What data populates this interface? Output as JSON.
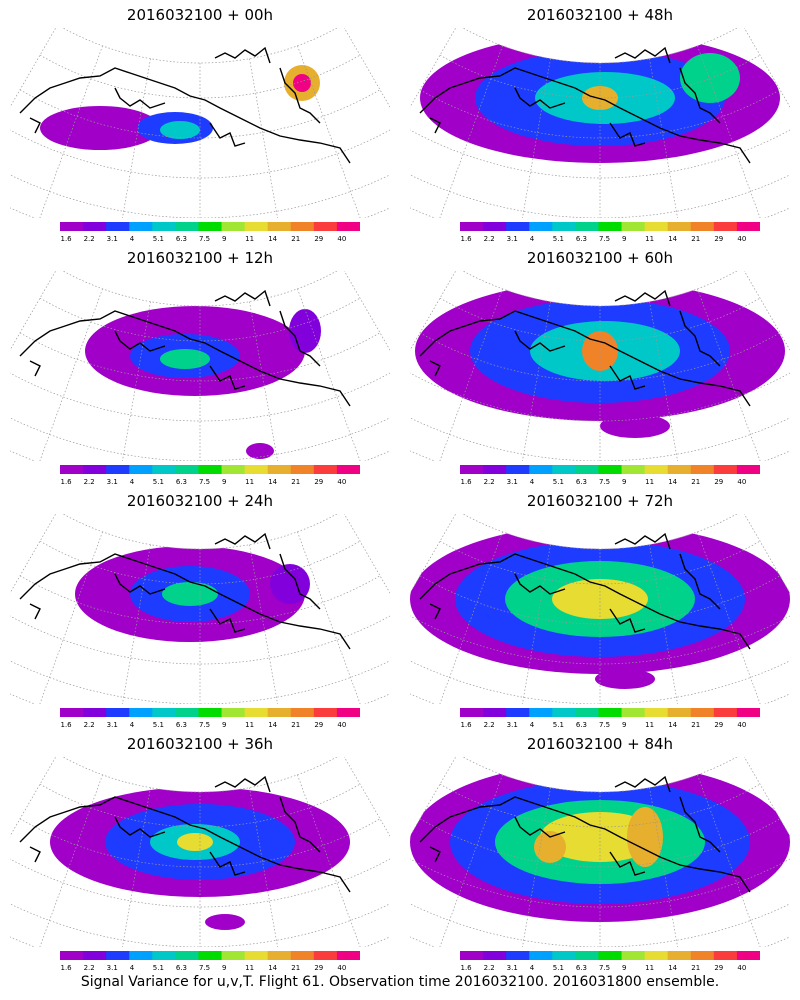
{
  "panels": [
    {
      "title": "2016032100 + 00h",
      "lead_hours": 0
    },
    {
      "title": "2016032100 + 48h",
      "lead_hours": 48
    },
    {
      "title": "2016032100 + 12h",
      "lead_hours": 12
    },
    {
      "title": "2016032100 + 60h",
      "lead_hours": 60
    },
    {
      "title": "2016032100 + 24h",
      "lead_hours": 24
    },
    {
      "title": "2016032100 + 72h",
      "lead_hours": 72
    },
    {
      "title": "2016032100 + 36h",
      "lead_hours": 36
    },
    {
      "title": "2016032100 + 84h",
      "lead_hours": 84
    }
  ],
  "colorbar": {
    "labels": [
      "1.6",
      "2.2",
      "3.1",
      "4",
      "5.1",
      "6.3",
      "7.5",
      "9",
      "11",
      "14",
      "21",
      "29",
      "40"
    ],
    "colors": [
      "#a000c8",
      "#8200dc",
      "#1e3cff",
      "#00a0ff",
      "#00c8c8",
      "#00d28c",
      "#00dc00",
      "#a0e632",
      "#e6dc32",
      "#e6af2d",
      "#f08228",
      "#fa3c3c",
      "#f00082"
    ]
  },
  "footer": "Signal Variance for u,v,T. Flight 61. Observation time 2016032100. 2016031800 ensemble.",
  "colors": {
    "coastline": "#000000",
    "grid": "#999999",
    "background": "#ffffff"
  }
}
